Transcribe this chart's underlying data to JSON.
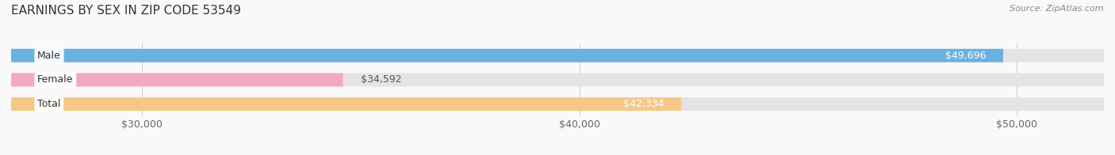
{
  "title": "EARNINGS BY SEX IN ZIP CODE 53549",
  "source": "Source: ZipAtlas.com",
  "categories": [
    "Male",
    "Female",
    "Total"
  ],
  "values": [
    49696,
    34592,
    42334
  ],
  "bar_colors": [
    "#6ab0e0",
    "#f4a8c0",
    "#f5c888"
  ],
  "bar_bg_color": "#e4e4e4",
  "label_colors": [
    "#ffffff",
    "#555555",
    "#ffffff"
  ],
  "x_min": 27000,
  "x_max": 52000,
  "x_ticks": [
    30000,
    40000,
    50000
  ],
  "x_tick_labels": [
    "$30,000",
    "$40,000",
    "$50,000"
  ],
  "bar_height": 0.55,
  "background_color": "#f9f9f9",
  "title_fontsize": 11,
  "tick_fontsize": 9,
  "label_fontsize": 9,
  "category_fontsize": 9
}
